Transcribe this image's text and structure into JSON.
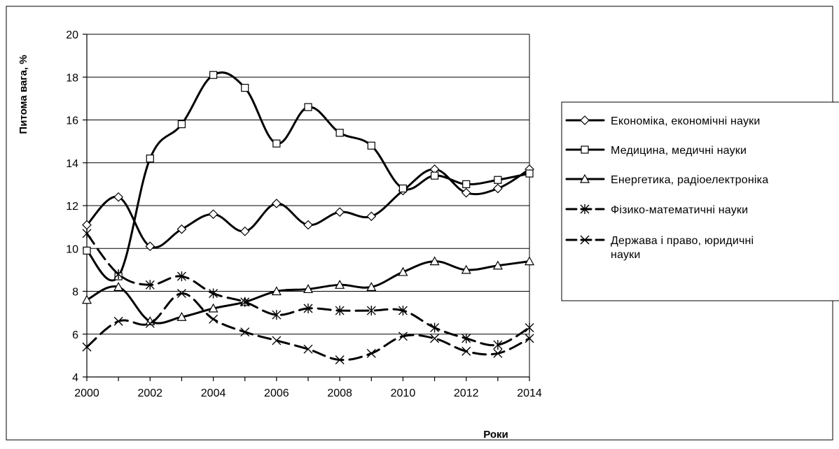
{
  "chart_data": {
    "type": "line",
    "xlabel": "Роки",
    "ylabel": "Питома вага, %",
    "xlim": [
      2000,
      2014
    ],
    "ylim": [
      4,
      20
    ],
    "x_ticks": [
      "2000",
      "2002",
      "2004",
      "2006",
      "2008",
      "2010",
      "2012",
      "2014"
    ],
    "y_ticks": [
      "4",
      "6",
      "8",
      "10",
      "12",
      "14",
      "16",
      "18",
      "20"
    ],
    "grid": "horizontal",
    "legend_position": "right",
    "x": [
      2000,
      2001,
      2002,
      2003,
      2004,
      2005,
      2006,
      2007,
      2008,
      2009,
      2010,
      2011,
      2012,
      2013,
      2014
    ],
    "series": [
      {
        "name": "Економіка, економічні науки",
        "marker": "diamond",
        "values": [
          11.1,
          12.4,
          10.1,
          10.9,
          11.6,
          10.8,
          12.1,
          11.1,
          11.7,
          11.5,
          12.7,
          13.7,
          12.6,
          12.8,
          13.7
        ]
      },
      {
        "name": "Медицина, медичні науки",
        "marker": "square",
        "values": [
          9.9,
          8.7,
          14.2,
          15.8,
          18.1,
          17.5,
          14.9,
          16.6,
          15.4,
          14.8,
          12.8,
          13.4,
          13.0,
          13.2,
          13.5
        ]
      },
      {
        "name": "Енергетика, радіоелектроніка",
        "marker": "triangle",
        "values": [
          7.6,
          8.2,
          6.6,
          6.8,
          7.2,
          7.5,
          8.0,
          8.1,
          8.3,
          8.2,
          8.9,
          9.4,
          9.0,
          9.2,
          9.4
        ]
      },
      {
        "name": "Фізико-математичні науки",
        "marker": "asterisk",
        "values": [
          10.7,
          8.8,
          8.3,
          8.7,
          7.9,
          7.5,
          6.9,
          7.2,
          7.1,
          7.1,
          7.1,
          6.3,
          5.8,
          5.5,
          6.3
        ]
      },
      {
        "name": "Держава і право, юридичні науки",
        "marker": "x",
        "values": [
          5.4,
          6.6,
          6.5,
          7.9,
          6.7,
          6.1,
          5.7,
          5.3,
          4.8,
          5.1,
          5.9,
          5.8,
          5.2,
          5.1,
          5.8
        ]
      }
    ]
  }
}
